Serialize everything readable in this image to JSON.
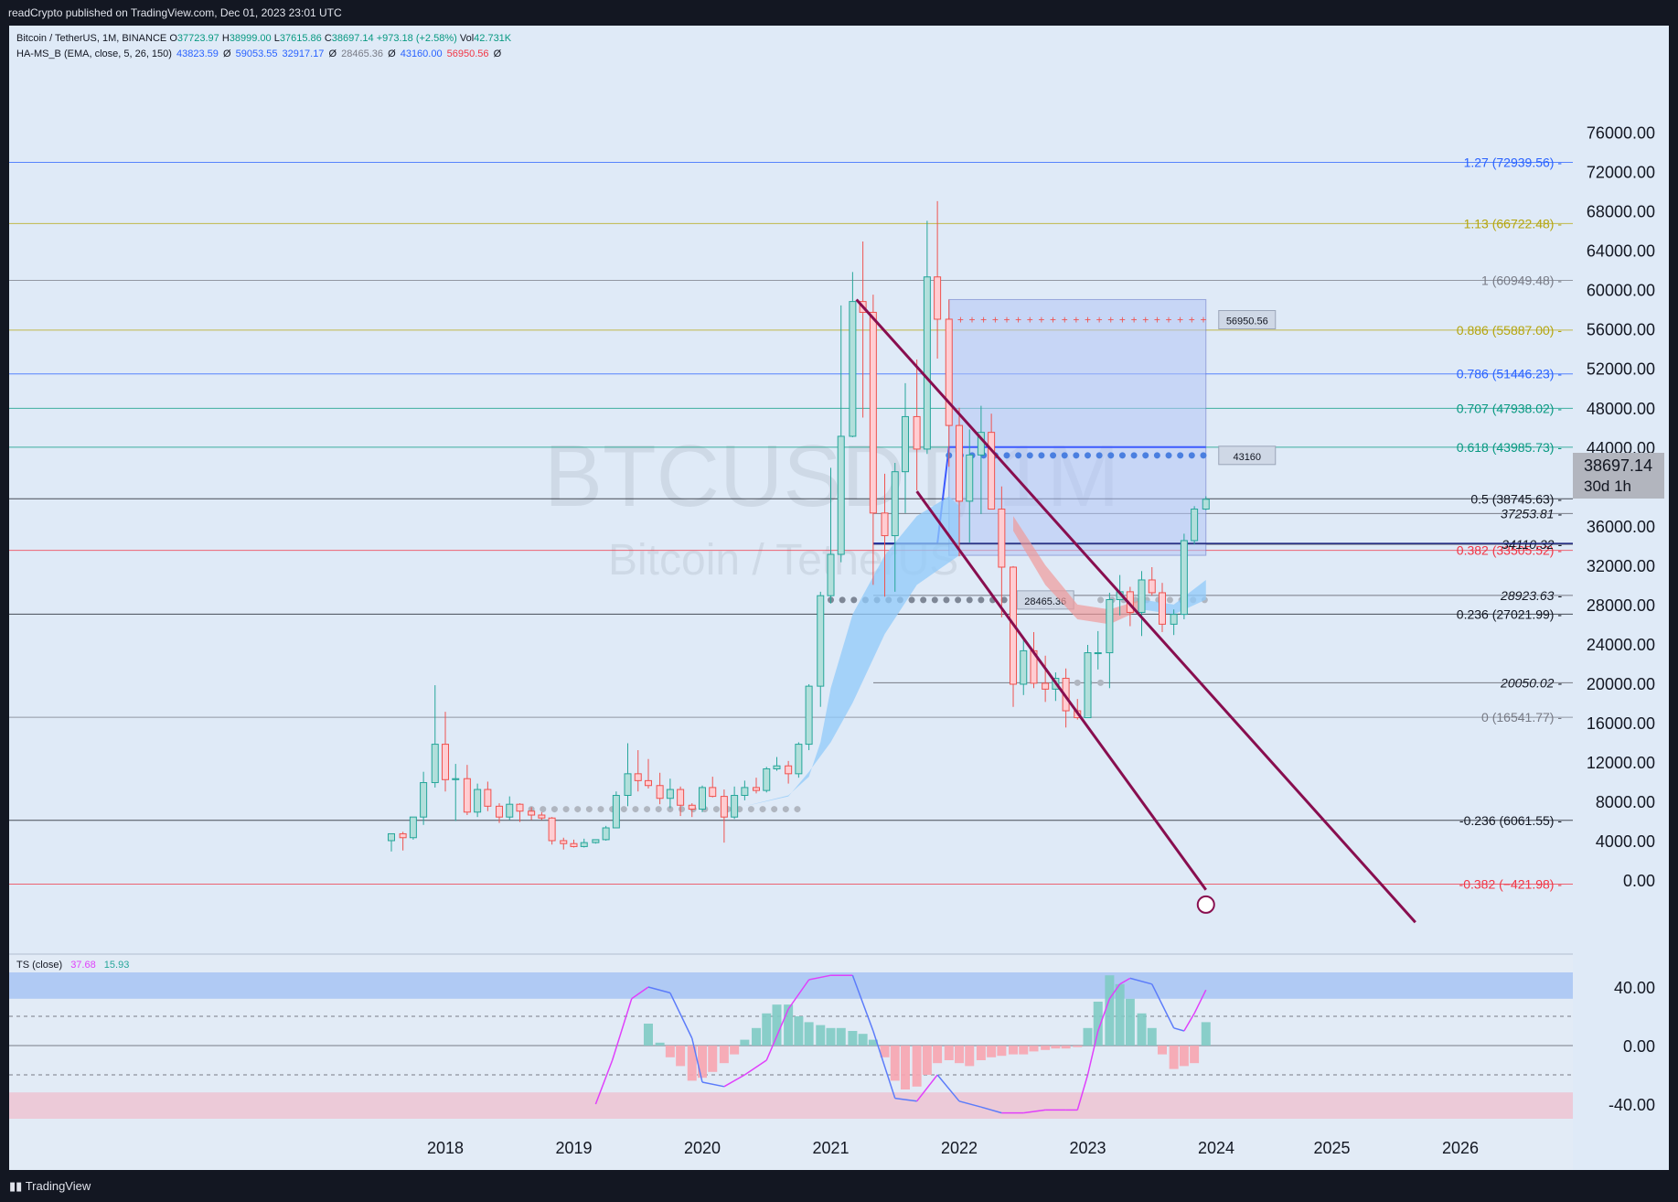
{
  "header": {
    "publish_text": "readCrypto published on TradingView.com, Dec 01, 2023 23:01 UTC"
  },
  "legend": {
    "symbol": "Bitcoin / TetherUS, 1M, BINANCE",
    "open_label": "O",
    "open": "37723.97",
    "high_label": "H",
    "high": "38999.00",
    "low_label": "L",
    "low": "37615.86",
    "close_label": "C",
    "close": "38697.14",
    "change": "+973.18 (+2.58%)",
    "vol_label": "Vol",
    "vol": "42.731K",
    "indicator": "HA-MS_B (EMA, close, 5, 26, 150)",
    "ind_values": [
      "43823.59",
      "Ø",
      "59053.55",
      "32917.17",
      "Ø",
      "28465.36",
      "Ø",
      "43160.00",
      "56950.56",
      "Ø"
    ]
  },
  "watermark": {
    "ticker": "BTCUSDT, 1M",
    "name": "Bitcoin / TetherUS"
  },
  "price_tag": {
    "price": "38697.14",
    "countdown": "30d 1h"
  },
  "ts_legend": {
    "name": "TS (close)",
    "v1": "37.68",
    "v2": "15.93"
  },
  "footer": {
    "logo": "TradingView"
  },
  "colors": {
    "up": "#26a69a",
    "down": "#ef5350",
    "channel": "#880e4f",
    "ma_band": "#90caf9",
    "zone": "#b3c4f5",
    "background": "#dfeaf7"
  },
  "chart_data": {
    "type": "candlestick",
    "timeframe": "1M",
    "y_axis_ticks": [
      "76000.00",
      "72000.00",
      "68000.00",
      "64000.00",
      "60000.00",
      "56000.00",
      "52000.00",
      "48000.00",
      "44000.00",
      "40000.00",
      "36000.00",
      "32000.00",
      "28000.00",
      "24000.00",
      "20000.00",
      "16000.00",
      "12000.00",
      "8000.00",
      "4000.00",
      "0.00"
    ],
    "x_axis_ticks": [
      "2018",
      "2019",
      "2020",
      "2021",
      "2022",
      "2023",
      "2024",
      "2025",
      "2026"
    ],
    "ylim": [
      -3000,
      78000
    ],
    "fib_levels": [
      {
        "label": "1.27 (72939.56)",
        "value": 72939.56,
        "color": "#2962ff"
      },
      {
        "label": "1.13 (66722.48)",
        "value": 66722.48,
        "color": "#b5a50f"
      },
      {
        "label": "1 (60949.48)",
        "value": 60949.48,
        "color": "#787b86"
      },
      {
        "label": "0.886 (55887.00)",
        "value": 55887.0,
        "color": "#b5a50f"
      },
      {
        "label": "0.786 (51446.23)",
        "value": 51446.23,
        "color": "#2962ff"
      },
      {
        "label": "0.707 (47938.02)",
        "value": 47938.02,
        "color": "#089981"
      },
      {
        "label": "0.618 (43985.73)",
        "value": 43985.73,
        "color": "#089981"
      },
      {
        "label": "0.5 (38745.63)",
        "value": 38745.63,
        "color": "#131722"
      },
      {
        "label": "0.382 (33505.52)",
        "value": 33505.52,
        "color": "#f23645"
      },
      {
        "label": "0.236 (27021.99)",
        "value": 27021.99,
        "color": "#131722"
      },
      {
        "label": "0 (16541.77)",
        "value": 16541.77,
        "color": "#787b86"
      },
      {
        "label": "-0.236 (6061.55)",
        "value": 6061.55,
        "color": "#131722"
      },
      {
        "label": "-0.382 (−421.98)",
        "value": -421.98,
        "color": "#f23645"
      }
    ],
    "marker_labels": [
      {
        "label": "56950.56",
        "value": 56950.56
      },
      {
        "label": "43160",
        "value": 43160
      },
      {
        "label": "28465.36",
        "value": 28465.36
      }
    ],
    "level_labels": [
      {
        "label": "37253.81",
        "value": 37253.81
      },
      {
        "label": "34110.32",
        "value": 34110.32
      },
      {
        "label": "28923.63",
        "value": 28923.63
      },
      {
        "label": "20050.02",
        "value": 20050.02
      }
    ],
    "candles": [
      [
        2017.58,
        4000,
        4700,
        2900,
        4700
      ],
      [
        2017.67,
        4700,
        4900,
        3000,
        4300
      ],
      [
        2017.75,
        4300,
        6400,
        4100,
        6400
      ],
      [
        2017.83,
        6400,
        11000,
        5600,
        9900
      ],
      [
        2017.92,
        9900,
        19800,
        9400,
        13800
      ],
      [
        2018.0,
        13800,
        17100,
        9000,
        10200
      ],
      [
        2018.08,
        10200,
        11800,
        6000,
        10300
      ],
      [
        2018.17,
        10300,
        11700,
        6600,
        6900
      ],
      [
        2018.25,
        6900,
        9800,
        6400,
        9200
      ],
      [
        2018.33,
        9200,
        10000,
        7000,
        7500
      ],
      [
        2018.42,
        7500,
        7800,
        5800,
        6400
      ],
      [
        2018.5,
        6400,
        8500,
        6100,
        7700
      ],
      [
        2018.58,
        7700,
        7800,
        5900,
        7000
      ],
      [
        2018.67,
        7000,
        7400,
        6100,
        6600
      ],
      [
        2018.75,
        6600,
        6900,
        6100,
        6300
      ],
      [
        2018.83,
        6300,
        6400,
        3600,
        4000
      ],
      [
        2018.92,
        4000,
        4300,
        3100,
        3700
      ],
      [
        2019.0,
        3700,
        4100,
        3300,
        3400
      ],
      [
        2019.08,
        3400,
        4200,
        3300,
        3800
      ],
      [
        2019.17,
        3800,
        4100,
        3700,
        4100
      ],
      [
        2019.25,
        4100,
        5500,
        4000,
        5300
      ],
      [
        2019.33,
        5300,
        9000,
        5300,
        8600
      ],
      [
        2019.42,
        8600,
        13900,
        7500,
        10800
      ],
      [
        2019.5,
        10800,
        13200,
        9000,
        10100
      ],
      [
        2019.58,
        10100,
        12300,
        9300,
        9600
      ],
      [
        2019.67,
        9600,
        10900,
        7700,
        8300
      ],
      [
        2019.75,
        8300,
        10300,
        7300,
        9200
      ],
      [
        2019.83,
        9200,
        9500,
        6500,
        7600
      ],
      [
        2019.92,
        7600,
        7800,
        6400,
        7200
      ],
      [
        2020.0,
        7200,
        9600,
        6900,
        9400
      ],
      [
        2020.08,
        9400,
        10500,
        8400,
        8500
      ],
      [
        2020.17,
        8500,
        9200,
        3800,
        6400
      ],
      [
        2020.25,
        6400,
        9500,
        6200,
        8600
      ],
      [
        2020.33,
        8600,
        10100,
        8100,
        9400
      ],
      [
        2020.42,
        9400,
        10400,
        8800,
        9100
      ],
      [
        2020.5,
        9100,
        11500,
        8900,
        11300
      ],
      [
        2020.58,
        11300,
        12500,
        11100,
        11600
      ],
      [
        2020.67,
        11600,
        12100,
        9800,
        10800
      ],
      [
        2020.75,
        10800,
        14000,
        10400,
        13800
      ],
      [
        2020.83,
        13800,
        19900,
        13200,
        19700
      ],
      [
        2020.92,
        19700,
        29300,
        17600,
        28900
      ],
      [
        2021.0,
        28900,
        41900,
        28100,
        33100
      ],
      [
        2021.08,
        33100,
        58400,
        32300,
        45100
      ],
      [
        2021.17,
        45100,
        61800,
        45000,
        58800
      ],
      [
        2021.25,
        58800,
        64900,
        47000,
        57700
      ],
      [
        2021.33,
        57700,
        59500,
        30000,
        37300
      ],
      [
        2021.42,
        37300,
        41300,
        28800,
        35000
      ],
      [
        2021.5,
        35000,
        42400,
        29300,
        41500
      ],
      [
        2021.58,
        41500,
        50500,
        37300,
        47100
      ],
      [
        2021.67,
        47100,
        52900,
        39600,
        43800
      ],
      [
        2021.75,
        43800,
        67000,
        43300,
        61300
      ],
      [
        2021.83,
        61300,
        69000,
        53000,
        57000
      ],
      [
        2021.92,
        57000,
        59000,
        42000,
        46200
      ],
      [
        2022.0,
        46200,
        48000,
        32900,
        38500
      ],
      [
        2022.08,
        38500,
        45800,
        34300,
        43200
      ],
      [
        2022.17,
        43200,
        48200,
        37200,
        45500
      ],
      [
        2022.25,
        45500,
        47400,
        37700,
        37700
      ],
      [
        2022.33,
        37700,
        40000,
        26700,
        31800
      ],
      [
        2022.42,
        31800,
        31900,
        17600,
        19900
      ],
      [
        2022.5,
        19900,
        24700,
        18800,
        23300
      ],
      [
        2022.58,
        23300,
        25200,
        19500,
        20000
      ],
      [
        2022.67,
        20000,
        22800,
        18100,
        19400
      ],
      [
        2022.75,
        19400,
        21100,
        18200,
        20500
      ],
      [
        2022.83,
        20500,
        21500,
        15500,
        17200
      ],
      [
        2022.92,
        17200,
        18400,
        16300,
        16500
      ],
      [
        2023.0,
        16500,
        23900,
        16500,
        23100
      ],
      [
        2023.08,
        23100,
        25300,
        21400,
        23100
      ],
      [
        2023.17,
        23100,
        29200,
        19500,
        28500
      ],
      [
        2023.25,
        28500,
        31000,
        26900,
        29300
      ],
      [
        2023.33,
        29300,
        29800,
        25800,
        27200
      ],
      [
        2023.42,
        27200,
        31400,
        24800,
        30500
      ],
      [
        2023.5,
        30500,
        31800,
        28900,
        29200
      ],
      [
        2023.58,
        29200,
        30200,
        25200,
        26000
      ],
      [
        2023.67,
        26000,
        27500,
        24900,
        27000
      ],
      [
        2023.75,
        27000,
        35200,
        26500,
        34500
      ],
      [
        2023.83,
        34500,
        38000,
        34100,
        37700
      ],
      [
        2023.92,
        37700,
        39000,
        37600,
        38700
      ]
    ],
    "ts_oscillator": {
      "ylim": [
        -50,
        50
      ],
      "y_axis_ticks": [
        "40.00",
        "0.00",
        "-40.00"
      ],
      "hist_x": [
        2019.58,
        2019.67,
        2019.75,
        2019.83,
        2019.92,
        2020.0,
        2020.08,
        2020.17,
        2020.25,
        2020.33,
        2020.42,
        2020.5,
        2020.58,
        2020.67,
        2020.75,
        2020.83,
        2020.92,
        2021.0,
        2021.08,
        2021.17,
        2021.25,
        2021.33,
        2021.42,
        2021.5,
        2021.58,
        2021.67,
        2021.75,
        2021.83,
        2021.92,
        2022.0,
        2022.08,
        2022.17,
        2022.25,
        2022.33,
        2022.42,
        2022.5,
        2022.58,
        2022.67,
        2022.75,
        2022.83,
        2022.92,
        2023.0,
        2023.08,
        2023.17,
        2023.25,
        2023.33,
        2023.42,
        2023.5,
        2023.58,
        2023.67,
        2023.75,
        2023.83,
        2023.92
      ],
      "hist_values": [
        15,
        2,
        -8,
        -14,
        -24,
        -22,
        -18,
        -12,
        -6,
        4,
        12,
        22,
        28,
        28,
        20,
        16,
        14,
        12,
        12,
        10,
        8,
        4,
        -8,
        -24,
        -30,
        -28,
        -20,
        -12,
        -10,
        -12,
        -14,
        -10,
        -8,
        -7,
        -6,
        -6,
        -4,
        -3,
        -2,
        -2,
        -1,
        12,
        30,
        48,
        42,
        32,
        22,
        12,
        -6,
        -16,
        -14,
        -12,
        16
      ],
      "line_x": [
        2019.17,
        2019.3,
        2019.45,
        2019.58,
        2019.75,
        2019.92,
        2020.0,
        2020.17,
        2020.33,
        2020.5,
        2020.67,
        2020.83,
        2021.0,
        2021.17,
        2021.33,
        2021.5,
        2021.67,
        2021.83,
        2022.0,
        2022.17,
        2022.33,
        2022.5,
        2022.67,
        2022.83,
        2022.92,
        2023.0,
        2023.08,
        2023.17,
        2023.25,
        2023.33,
        2023.5,
        2023.67,
        2023.75,
        2023.83,
        2023.92
      ],
      "line_values": [
        -40,
        -10,
        32,
        40,
        36,
        5,
        -25,
        -28,
        -20,
        -10,
        25,
        45,
        48,
        48,
        10,
        -36,
        -38,
        -20,
        -38,
        -42,
        -46,
        -46,
        -44,
        -44,
        -44,
        -20,
        10,
        32,
        42,
        46,
        42,
        12,
        10,
        22,
        38
      ]
    }
  }
}
